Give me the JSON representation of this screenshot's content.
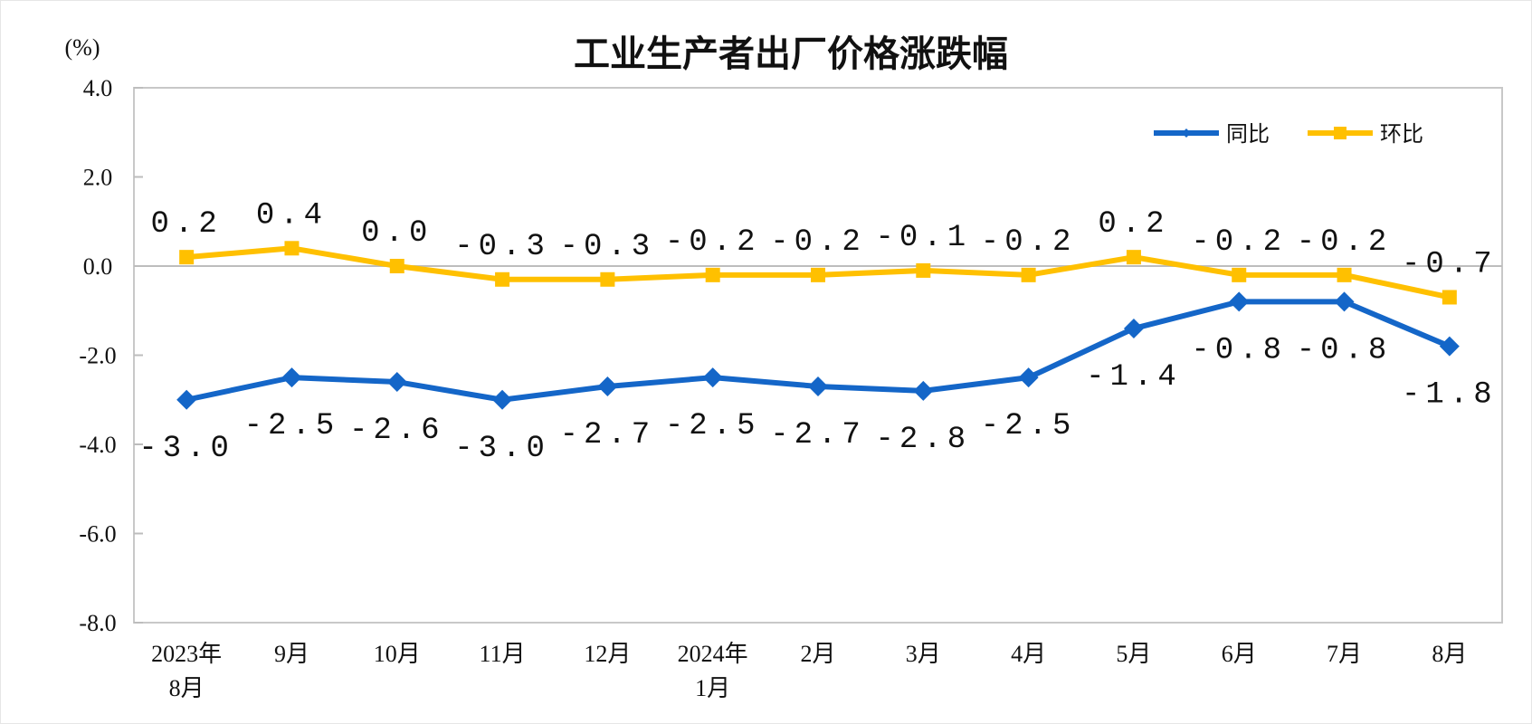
{
  "chart_data": {
    "type": "line",
    "title": "工业生产者出厂价格涨跌幅",
    "ylabel": "(%)",
    "xlabel": "",
    "ylim": [
      -8.0,
      4.0
    ],
    "yticks": [
      "4.0",
      "2.0",
      "0.0",
      "-2.0",
      "-4.0",
      "-6.0",
      "-8.0"
    ],
    "grid": false,
    "legend_position": "top-right",
    "categories": [
      [
        "2023年",
        "8月"
      ],
      [
        "9月"
      ],
      [
        "10月"
      ],
      [
        "11月"
      ],
      [
        "12月"
      ],
      [
        "2024年",
        "1月"
      ],
      [
        "2月"
      ],
      [
        "3月"
      ],
      [
        "4月"
      ],
      [
        "5月"
      ],
      [
        "6月"
      ],
      [
        "7月"
      ],
      [
        "8月"
      ]
    ],
    "series": [
      {
        "name": "同比",
        "color": "#1466C8",
        "marker": "diamond",
        "label_side": "below",
        "values": [
          -3.0,
          -2.5,
          -2.6,
          -3.0,
          -2.7,
          -2.5,
          -2.7,
          -2.8,
          -2.5,
          -1.4,
          -0.8,
          -0.8,
          -1.8
        ],
        "labels": [
          "-3.0",
          "-2.5",
          "-2.6",
          "-3.0",
          "-2.7",
          "-2.5",
          "-2.7",
          "-2.8",
          "-2.5",
          "-1.4",
          "-0.8",
          "-0.8",
          "-1.8"
        ]
      },
      {
        "name": "环比",
        "color": "#FFC000",
        "marker": "square",
        "label_side": "above",
        "values": [
          0.2,
          0.4,
          0.0,
          -0.3,
          -0.3,
          -0.2,
          -0.2,
          -0.1,
          -0.2,
          0.2,
          -0.2,
          -0.2,
          -0.7
        ],
        "labels": [
          "0.2",
          "0.4",
          "0.0",
          "-0.3",
          "-0.3",
          "-0.2",
          "-0.2",
          "-0.1",
          "-0.2",
          "0.2",
          "-0.2",
          "-0.2",
          "-0.7"
        ]
      }
    ]
  }
}
